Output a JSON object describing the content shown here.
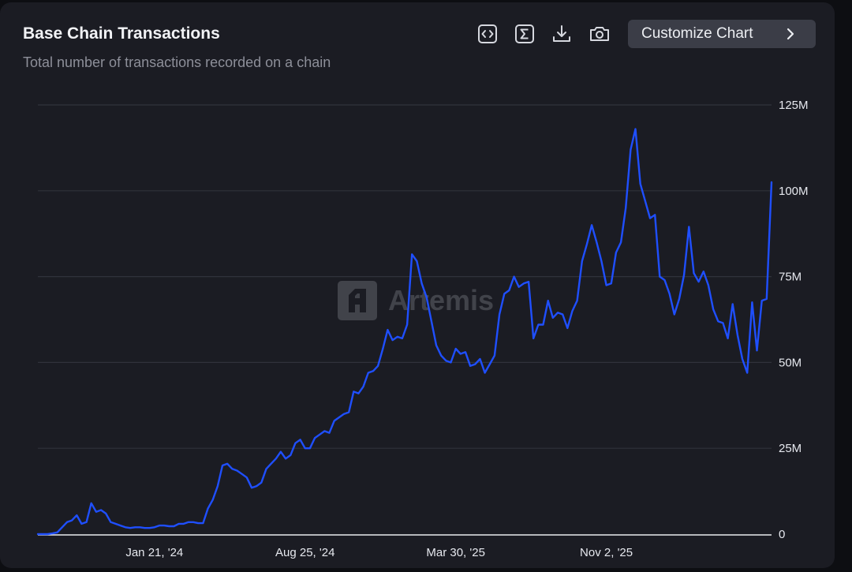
{
  "header": {
    "title": "Base Chain Transactions",
    "subtitle": "Total number of transactions recorded on a chain"
  },
  "toolbar": {
    "icons": [
      "code-embed-icon",
      "sigma-icon",
      "download-icon",
      "camera-icon"
    ],
    "customize_label": "Customize Chart"
  },
  "watermark": {
    "text": "Artemis"
  },
  "colors": {
    "line": "#1f4fff",
    "grid": "#30323b",
    "axis_text": "#e6e8ee",
    "card": "#1b1c23"
  },
  "chart_data": {
    "type": "line",
    "title": "Base Chain Transactions",
    "subtitle": "Total number of transactions recorded on a chain",
    "x_ticks": [
      "Jan 21, '24",
      "Aug 25, '24",
      "Mar 30, '25",
      "Nov 2, '25"
    ],
    "y_ticks": [
      "0",
      "25M",
      "50M",
      "75M",
      "100M",
      "125M"
    ],
    "ylim": [
      0,
      125
    ],
    "y_unit": "M",
    "y_axis_position": "right",
    "grid": true,
    "series": [
      {
        "points": [
          [
            "2023-08-06",
            0
          ],
          [
            "2023-08-13",
            0
          ],
          [
            "2023-08-20",
            0
          ],
          [
            "2023-08-27",
            0.2
          ],
          [
            "2023-09-03",
            0.5
          ],
          [
            "2023-09-10",
            2
          ],
          [
            "2023-09-17",
            3.5
          ],
          [
            "2023-09-24",
            4
          ],
          [
            "2023-10-01",
            5.5
          ],
          [
            "2023-10-08",
            3
          ],
          [
            "2023-10-15",
            3.5
          ],
          [
            "2023-10-22",
            9
          ],
          [
            "2023-10-29",
            6.5
          ],
          [
            "2023-11-05",
            7
          ],
          [
            "2023-11-12",
            6
          ],
          [
            "2023-11-19",
            3.5
          ],
          [
            "2023-11-26",
            3
          ],
          [
            "2023-12-03",
            2.5
          ],
          [
            "2023-12-10",
            2
          ],
          [
            "2023-12-17",
            1.8
          ],
          [
            "2023-12-24",
            2
          ],
          [
            "2023-12-31",
            2
          ],
          [
            "2024-01-07",
            1.8
          ],
          [
            "2024-01-14",
            1.8
          ],
          [
            "2024-01-21",
            2
          ],
          [
            "2024-01-28",
            2.5
          ],
          [
            "2024-02-04",
            2.5
          ],
          [
            "2024-02-11",
            2.3
          ],
          [
            "2024-02-18",
            2.3
          ],
          [
            "2024-02-25",
            3
          ],
          [
            "2024-03-03",
            3
          ],
          [
            "2024-03-10",
            3.5
          ],
          [
            "2024-03-17",
            3.5
          ],
          [
            "2024-03-24",
            3.2
          ],
          [
            "2024-03-31",
            3.2
          ],
          [
            "2024-04-07",
            7.5
          ],
          [
            "2024-04-14",
            10
          ],
          [
            "2024-04-21",
            14
          ],
          [
            "2024-04-28",
            20
          ],
          [
            "2024-05-05",
            20.5
          ],
          [
            "2024-05-12",
            19
          ],
          [
            "2024-05-19",
            18.5
          ],
          [
            "2024-05-26",
            17.5
          ],
          [
            "2024-06-02",
            16.5
          ],
          [
            "2024-06-09",
            13.5
          ],
          [
            "2024-06-16",
            14
          ],
          [
            "2024-06-23",
            15
          ],
          [
            "2024-06-30",
            19
          ],
          [
            "2024-07-07",
            20.5
          ],
          [
            "2024-07-14",
            22
          ],
          [
            "2024-07-21",
            24
          ],
          [
            "2024-07-28",
            22
          ],
          [
            "2024-08-04",
            23
          ],
          [
            "2024-08-11",
            26.5
          ],
          [
            "2024-08-18",
            27.5
          ],
          [
            "2024-08-25",
            25
          ],
          [
            "2024-09-01",
            25
          ],
          [
            "2024-09-08",
            28
          ],
          [
            "2024-09-15",
            29
          ],
          [
            "2024-09-22",
            30
          ],
          [
            "2024-09-29",
            29.5
          ],
          [
            "2024-10-06",
            33
          ],
          [
            "2024-10-13",
            34
          ],
          [
            "2024-10-20",
            35
          ],
          [
            "2024-10-27",
            35.5
          ],
          [
            "2024-11-03",
            41.5
          ],
          [
            "2024-11-10",
            41
          ],
          [
            "2024-11-17",
            43
          ],
          [
            "2024-11-24",
            47
          ],
          [
            "2024-12-01",
            47.5
          ],
          [
            "2024-12-08",
            49
          ],
          [
            "2024-12-15",
            54
          ],
          [
            "2024-12-22",
            59.5
          ],
          [
            "2024-12-29",
            56.5
          ],
          [
            "2025-01-05",
            57.5
          ],
          [
            "2025-01-12",
            57
          ],
          [
            "2025-01-19",
            61
          ],
          [
            "2025-01-26",
            81.5
          ],
          [
            "2025-02-02",
            79.5
          ],
          [
            "2025-02-09",
            73
          ],
          [
            "2025-02-16",
            69
          ],
          [
            "2025-02-23",
            62
          ],
          [
            "2025-03-02",
            55
          ],
          [
            "2025-03-09",
            52
          ],
          [
            "2025-03-16",
            50.5
          ],
          [
            "2025-03-23",
            50
          ],
          [
            "2025-03-30",
            54
          ],
          [
            "2025-04-06",
            52.5
          ],
          [
            "2025-04-13",
            53
          ],
          [
            "2025-04-20",
            49
          ],
          [
            "2025-04-27",
            49.5
          ],
          [
            "2025-05-04",
            51
          ],
          [
            "2025-05-11",
            47
          ],
          [
            "2025-05-18",
            49.5
          ],
          [
            "2025-05-25",
            52
          ],
          [
            "2025-06-01",
            64
          ],
          [
            "2025-06-08",
            70
          ],
          [
            "2025-06-15",
            71
          ],
          [
            "2025-06-22",
            75
          ],
          [
            "2025-06-29",
            72
          ],
          [
            "2025-07-06",
            73
          ],
          [
            "2025-07-13",
            73.5
          ],
          [
            "2025-07-20",
            57
          ],
          [
            "2025-07-27",
            61
          ],
          [
            "2025-08-03",
            61
          ],
          [
            "2025-08-10",
            68
          ],
          [
            "2025-08-17",
            63
          ],
          [
            "2025-08-24",
            64.5
          ],
          [
            "2025-08-31",
            64
          ],
          [
            "2025-09-07",
            60
          ],
          [
            "2025-09-14",
            65
          ],
          [
            "2025-09-21",
            68
          ],
          [
            "2025-09-28",
            79.5
          ],
          [
            "2025-10-05",
            84.5
          ],
          [
            "2025-10-12",
            90
          ],
          [
            "2025-10-19",
            85
          ],
          [
            "2025-10-26",
            79.5
          ],
          [
            "2025-11-02",
            72.5
          ],
          [
            "2025-11-09",
            73
          ],
          [
            "2025-11-16",
            82
          ],
          [
            "2025-11-23",
            85
          ],
          [
            "2025-11-30",
            95
          ],
          [
            "2025-12-07",
            112
          ],
          [
            "2025-12-14",
            118
          ],
          [
            "2025-12-21",
            102
          ],
          [
            "2025-12-28",
            97
          ],
          [
            "2026-01-04",
            92
          ],
          [
            "2026-01-11",
            93
          ],
          [
            "2026-01-18",
            75
          ],
          [
            "2026-01-25",
            74
          ],
          [
            "2026-02-01",
            70
          ],
          [
            "2026-02-08",
            64
          ],
          [
            "2026-02-15",
            68.5
          ],
          [
            "2026-02-22",
            75.5
          ],
          [
            "2026-03-01",
            89.5
          ],
          [
            "2026-03-08",
            76
          ],
          [
            "2026-03-15",
            73.5
          ],
          [
            "2026-03-22",
            76.5
          ],
          [
            "2026-03-29",
            72.5
          ],
          [
            "2026-04-05",
            65.5
          ],
          [
            "2026-04-12",
            62
          ],
          [
            "2026-04-19",
            61.5
          ],
          [
            "2026-04-26",
            57
          ],
          [
            "2026-05-03",
            67
          ],
          [
            "2026-05-10",
            58
          ],
          [
            "2026-05-17",
            51
          ],
          [
            "2026-05-24",
            47
          ],
          [
            "2026-05-31",
            67.5
          ],
          [
            "2026-06-07",
            53.5
          ],
          [
            "2026-06-14",
            68
          ],
          [
            "2026-06-21",
            68.5
          ],
          [
            "2026-06-28",
            102.5
          ]
        ]
      }
    ]
  }
}
